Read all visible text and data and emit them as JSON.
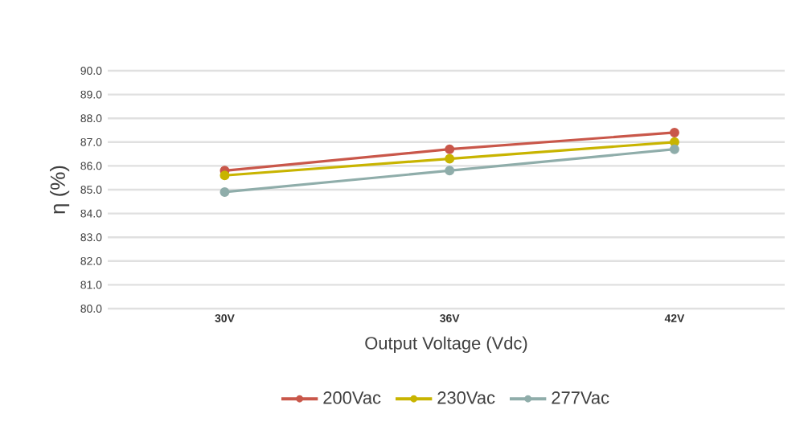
{
  "chart_data": {
    "type": "line",
    "xlabel": "Output Voltage (Vdc)",
    "ylabel": "η (%)",
    "categories": [
      "30V",
      "36V",
      "42V"
    ],
    "series": [
      {
        "name": "200Vac",
        "color": "#c9574a",
        "values": [
          85.8,
          86.7,
          87.4
        ]
      },
      {
        "name": "230Vac",
        "color": "#c8b400",
        "values": [
          85.6,
          86.3,
          87.0
        ]
      },
      {
        "name": "277Vac",
        "color": "#8fadaa",
        "values": [
          84.9,
          85.8,
          86.7
        ]
      }
    ],
    "ylim": [
      80,
      90
    ],
    "yticks": [
      {
        "value": 80,
        "label": "80.0"
      },
      {
        "value": 81,
        "label": "81.0"
      },
      {
        "value": 82,
        "label": "82.0"
      },
      {
        "value": 83,
        "label": "83.0"
      },
      {
        "value": 84,
        "label": "84.0"
      },
      {
        "value": 85,
        "label": "85.0"
      },
      {
        "value": 86,
        "label": "86.0"
      },
      {
        "value": 87,
        "label": "87.0"
      },
      {
        "value": 88,
        "label": "88.0"
      },
      {
        "value": 89,
        "label": "89.0"
      },
      {
        "value": 90,
        "label": "90.0"
      }
    ],
    "grid": "y",
    "legend": "bottom",
    "marker": "circle",
    "line_style": "solid"
  }
}
